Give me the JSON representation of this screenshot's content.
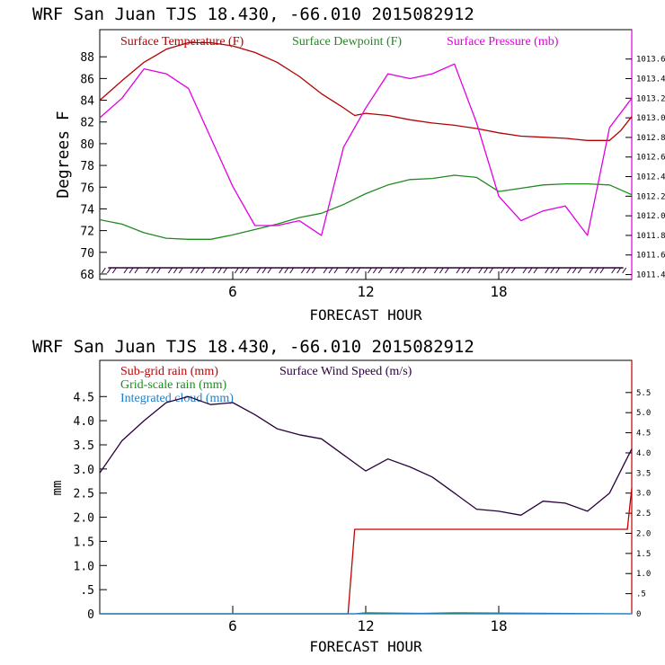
{
  "chart_data": [
    {
      "type": "line",
      "title": "WRF   San Juan TJS  18.430, -66.010  2015082912",
      "xlabel": "FORECAST HOUR",
      "ylabel": "Degrees F",
      "xlim": [
        0,
        24
      ],
      "ylim": [
        67.5,
        90.5
      ],
      "y2lim": [
        1011.35,
        1013.9
      ],
      "x_ticks": [
        6,
        12,
        18
      ],
      "y_ticks": [
        68,
        70,
        72,
        74,
        76,
        78,
        80,
        82,
        84,
        86,
        88
      ],
      "y2_ticks": [
        1011.4,
        1011.6,
        1011.8,
        1012.0,
        1012.2,
        1012.4,
        1012.6,
        1012.8,
        1013.0,
        1013.2,
        1013.4,
        1013.6
      ],
      "y2_tick_labels": [
        "1011.4",
        "1011.6",
        "1011.8",
        "1012.0",
        "1012.2",
        "1012.4",
        "1012.6",
        "1012.8",
        "1013.0",
        "1013.2",
        "1013.4",
        "1013.6"
      ],
      "legend_placement": "top",
      "series": [
        {
          "name": "Surface Temperature (F)",
          "color": "#b40000",
          "axis": "left",
          "x": [
            0,
            1,
            2,
            3,
            4,
            5,
            6,
            7,
            8,
            9,
            10,
            11,
            11.5,
            12,
            13,
            14,
            15,
            16,
            17,
            18,
            19,
            20,
            21,
            22,
            23,
            23.5,
            24
          ],
          "y": [
            84.0,
            85.8,
            87.5,
            88.7,
            89.3,
            89.3,
            89.0,
            88.4,
            87.5,
            86.2,
            84.6,
            83.3,
            82.6,
            82.8,
            82.6,
            82.2,
            81.9,
            81.7,
            81.4,
            81.0,
            80.7,
            80.6,
            80.5,
            80.3,
            80.3,
            81.2,
            82.5
          ]
        },
        {
          "name": "Surface Dewpoint (F)",
          "color": "#208a20",
          "axis": "left",
          "x": [
            0,
            1,
            2,
            3,
            4,
            5,
            6,
            7,
            8,
            9,
            10,
            11,
            12,
            13,
            14,
            15,
            16,
            17,
            18,
            19,
            20,
            21,
            22,
            23,
            24
          ],
          "y": [
            73.0,
            72.6,
            71.8,
            71.3,
            71.2,
            71.2,
            71.6,
            72.1,
            72.6,
            73.2,
            73.6,
            74.4,
            75.4,
            76.2,
            76.7,
            76.8,
            77.1,
            76.9,
            75.6,
            75.9,
            76.2,
            76.3,
            76.3,
            76.2,
            75.3
          ]
        },
        {
          "name": "Surface Pressure (mb)",
          "color": "#e000e0",
          "axis": "right",
          "x": [
            0,
            1,
            2,
            3,
            4,
            5,
            6,
            7,
            8,
            9,
            10,
            11,
            12,
            13,
            14,
            15,
            16,
            17,
            18,
            19,
            20,
            21,
            22,
            23,
            24
          ],
          "y": [
            1013.0,
            1013.2,
            1013.5,
            1013.45,
            1013.3,
            1012.8,
            1012.3,
            1011.9,
            1011.9,
            1011.95,
            1011.8,
            1012.7,
            1013.1,
            1013.45,
            1013.4,
            1013.45,
            1013.55,
            1012.95,
            1012.2,
            1011.95,
            1012.05,
            1012.1,
            1011.8,
            1012.9,
            1013.2
          ]
        }
      ],
      "wind_barbs": {
        "color": "#30003a",
        "x": [
          0.5,
          1.5,
          2.5,
          3.5,
          4.5,
          5.5,
          6.5,
          7.5,
          8.5,
          9.5,
          10.5,
          11.5,
          12.5,
          13.5,
          14.5,
          15.5,
          16.5,
          17.5,
          18.5,
          19.5,
          20.5,
          21.5,
          22.5,
          23.5
        ]
      }
    },
    {
      "type": "line",
      "title": "WRF   San Juan TJS  18.430, -66.010  2015082912",
      "xlabel": "FORECAST HOUR",
      "ylabel": "mm",
      "xlim": [
        0,
        24
      ],
      "ylim": [
        0,
        5.25
      ],
      "y2lim": [
        0,
        6.3
      ],
      "x_ticks": [
        6,
        12,
        18
      ],
      "y_ticks": [
        0,
        0.5,
        1.0,
        1.5,
        2.0,
        2.5,
        3.0,
        3.5,
        4.0,
        4.5
      ],
      "y_tick_labels": [
        "0",
        ".5",
        "1.0",
        "1.5",
        "2.0",
        "2.5",
        "3.0",
        "3.5",
        "4.0",
        "4.5"
      ],
      "y2_ticks": [
        0,
        0.5,
        1.0,
        1.5,
        2.0,
        2.5,
        3.0,
        3.5,
        4.0,
        4.5,
        5.0,
        5.5
      ],
      "y2_tick_labels": [
        "0",
        ".5",
        "1.0",
        "1.5",
        "2.0",
        "2.5",
        "3.0",
        "3.5",
        "4.0",
        "4.5",
        "5.0",
        "5.5"
      ],
      "legend_placement": "top-left",
      "series": [
        {
          "name": "Sub-grid rain (mm)",
          "color": "#c00000",
          "axis": "left",
          "x": [
            0,
            11.2,
            11.5,
            23.8,
            24
          ],
          "y": [
            0,
            0,
            1.75,
            1.75,
            2.6
          ]
        },
        {
          "name": "Grid-scale rain (mm)",
          "color": "#208a20",
          "axis": "left",
          "x": [
            0,
            24
          ],
          "y": [
            0,
            0
          ]
        },
        {
          "name": "Integrated cloud (mm)",
          "color": "#1e7fc8",
          "axis": "left",
          "x": [
            0,
            11.5,
            12,
            14.5,
            16,
            24
          ],
          "y": [
            0,
            0,
            0.02,
            0.01,
            0.02,
            0
          ]
        },
        {
          "name": "Surface Wind Speed (m/s)",
          "color": "#28003c",
          "axis": "right",
          "x": [
            0,
            1,
            2,
            3,
            4,
            5,
            6,
            7,
            8,
            9,
            10,
            11,
            12,
            13,
            14,
            15,
            16,
            17,
            18,
            19,
            20,
            21,
            22,
            23,
            24
          ],
          "y": [
            3.5,
            4.3,
            4.8,
            5.25,
            5.4,
            5.2,
            5.25,
            4.95,
            4.6,
            4.45,
            4.35,
            3.95,
            3.55,
            3.85,
            3.65,
            3.4,
            3.0,
            2.6,
            2.55,
            2.45,
            2.8,
            2.75,
            2.55,
            3.0,
            4.1
          ]
        }
      ]
    }
  ]
}
